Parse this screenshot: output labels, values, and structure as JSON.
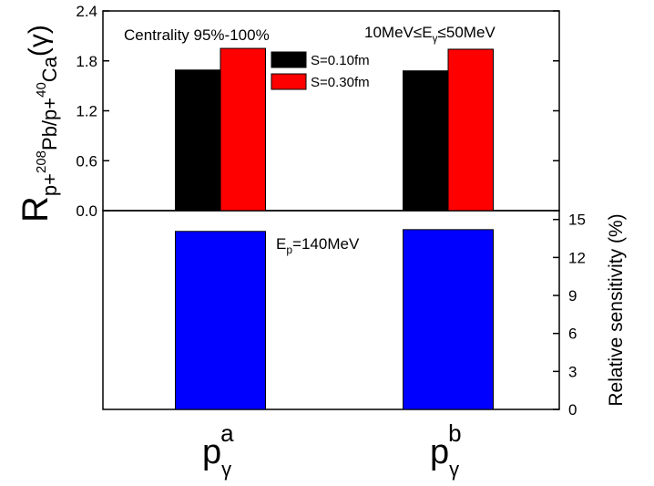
{
  "chart_data": [
    {
      "type": "bar",
      "ylabel": {
        "main": "R",
        "sub1": "p+",
        "sup1": "208",
        "sub2": "Pb/p+",
        "sup2": "40",
        "sub3": "Ca",
        "tail": "(γ)"
      },
      "annotations": [
        {
          "text": "Centrality 95%-100%"
        },
        {
          "pre": "10MeV≤E",
          "sub": "γ",
          "post": "≤50MeV"
        }
      ],
      "categories": [
        "a",
        "b"
      ],
      "category_base": "p",
      "category_sub": "γ",
      "series": [
        {
          "name": "S=0.10fm",
          "color": "#000000",
          "values": [
            1.69,
            1.68
          ]
        },
        {
          "name": "S=0.30fm",
          "color": "#ff0000",
          "values": [
            1.95,
            1.94
          ]
        }
      ],
      "ylim": [
        0,
        2.4
      ],
      "yticks": [
        {
          "value": 0,
          "label": "0.0"
        },
        0.6,
        1.2,
        1.8,
        2.4
      ]
    },
    {
      "type": "bar",
      "annotation": {
        "pre": "E",
        "sub": "p",
        "post": "=140MeV"
      },
      "y2label": "Relative sensitivity (%)",
      "series": [
        {
          "color": "#0000ff",
          "values": [
            14.06,
            14.2
          ],
          "axis": "y2"
        }
      ],
      "y2lim": [
        0,
        15.7
      ],
      "y2ticks": [
        0,
        3,
        6,
        9,
        12,
        15
      ]
    }
  ]
}
